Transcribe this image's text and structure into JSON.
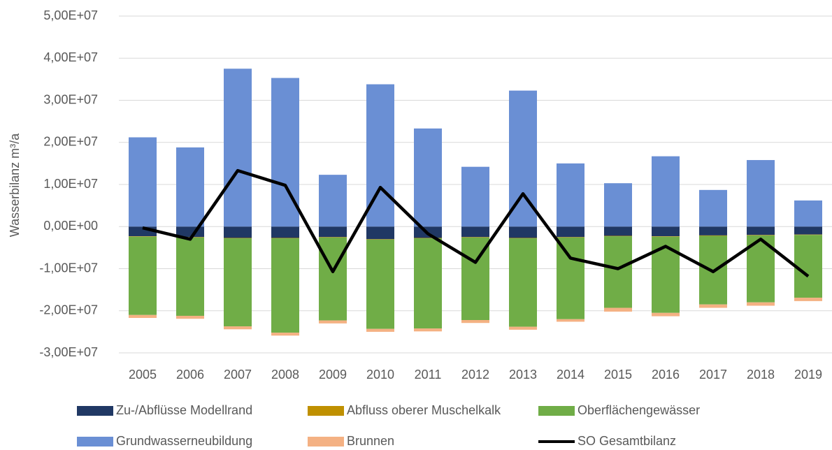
{
  "chart_data": {
    "type": "bar",
    "stacked": true,
    "y_label": "Wasserbilanz m³/a",
    "categories": [
      "2005",
      "2006",
      "2007",
      "2008",
      "2009",
      "2010",
      "2011",
      "2012",
      "2013",
      "2014",
      "2015",
      "2016",
      "2017",
      "2018",
      "2019"
    ],
    "ylim": [
      -30000000,
      50000000
    ],
    "yticks": [
      {
        "value": -30000000,
        "label": "-3,00E+07"
      },
      {
        "value": -20000000,
        "label": "-2,00E+07"
      },
      {
        "value": -10000000,
        "label": "-1,00E+07"
      },
      {
        "value": 0,
        "label": "0,00E+00"
      },
      {
        "value": 10000000,
        "label": "1,00E+07"
      },
      {
        "value": 20000000,
        "label": "2,00E+07"
      },
      {
        "value": 30000000,
        "label": "3,00E+07"
      },
      {
        "value": 40000000,
        "label": "4,00E+07"
      },
      {
        "value": 50000000,
        "label": "5,00E+07"
      }
    ],
    "grid": true,
    "legend": "bottom",
    "series": [
      {
        "name": "Zu-/Abflüsse Modellrand",
        "type": "bar",
        "color": "#203864",
        "values": [
          -2300000,
          -2500000,
          -2700000,
          -2700000,
          -2500000,
          -3000000,
          -2700000,
          -2500000,
          -2700000,
          -2500000,
          -2200000,
          -2300000,
          -2100000,
          -2000000,
          -1900000
        ]
      },
      {
        "name": "Abfluss oberer Muschelkalk",
        "type": "bar",
        "color": "#bf9000",
        "values": [
          -100000,
          -100000,
          -100000,
          -100000,
          -100000,
          -100000,
          -100000,
          -100000,
          -100000,
          -100000,
          -100000,
          -100000,
          -100000,
          -100000,
          -100000
        ]
      },
      {
        "name": "Oberflächengewässer",
        "type": "bar",
        "color": "#70ad47",
        "values": [
          -18600000,
          -18600000,
          -20900000,
          -22400000,
          -19700000,
          -21200000,
          -21400000,
          -19600000,
          -21000000,
          -19400000,
          -17000000,
          -18100000,
          -16300000,
          -15900000,
          -14900000
        ]
      },
      {
        "name": "Grundwasserneubildung",
        "type": "bar",
        "color": "#6a8fd4",
        "values": [
          21200000,
          18800000,
          37500000,
          35300000,
          12300000,
          33800000,
          23300000,
          14200000,
          32300000,
          15000000,
          10300000,
          16700000,
          8700000,
          15800000,
          6200000
        ]
      },
      {
        "name": "Brunnen",
        "type": "bar",
        "color": "#f4b183",
        "values": [
          -700000,
          -700000,
          -700000,
          -700000,
          -700000,
          -700000,
          -700000,
          -700000,
          -700000,
          -600000,
          -900000,
          -800000,
          -800000,
          -800000,
          -800000
        ]
      },
      {
        "name": "SO Gesamtbilanz",
        "type": "line",
        "color": "#000000",
        "values": [
          -300000,
          -3000000,
          13300000,
          9800000,
          -10700000,
          9300000,
          -1700000,
          -8500000,
          7800000,
          -7500000,
          -10000000,
          -4700000,
          -10700000,
          -3000000,
          -11800000
        ]
      }
    ]
  }
}
